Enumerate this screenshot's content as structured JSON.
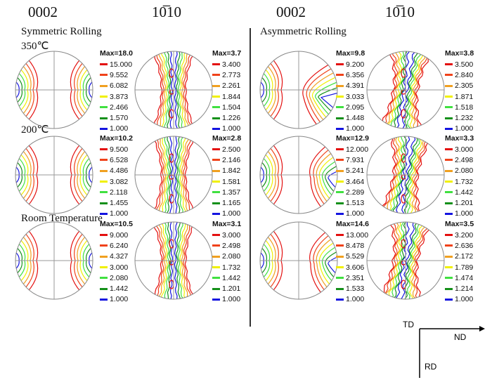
{
  "headers": {
    "pf_basal": "0002",
    "pf_prism": "10̅10",
    "pf_prism_plain": "1010"
  },
  "groups": {
    "symmetric": "Symmetric Rolling",
    "asymmetric": "Asymmetric Rolling"
  },
  "rows": [
    "350℃",
    "200℃",
    "Room Temperature"
  ],
  "level_colors": [
    "#e31010",
    "#f0421a",
    "#f0a020",
    "#f0f000",
    "#40e040",
    "#15901a",
    "#1414e0"
  ],
  "legends": [
    {
      "group": "symmetric",
      "row": 0,
      "pole": "0002",
      "max": "Max=18.0",
      "levels": [
        "15.000",
        "9.552",
        "6.082",
        "3.873",
        "2.466",
        "1.570",
        "1.000"
      ]
    },
    {
      "group": "symmetric",
      "row": 0,
      "pole": "10-10",
      "max": "Max=3.7",
      "levels": [
        "3.400",
        "2.773",
        "2.261",
        "1.844",
        "1.504",
        "1.226",
        "1.000"
      ]
    },
    {
      "group": "asymmetric",
      "row": 0,
      "pole": "0002",
      "max": "Max=9.8",
      "levels": [
        "9.200",
        "6.356",
        "4.391",
        "3.033",
        "2.095",
        "1.448",
        "1.000"
      ]
    },
    {
      "group": "asymmetric",
      "row": 0,
      "pole": "10-10",
      "max": "Max=3.8",
      "levels": [
        "3.500",
        "2.840",
        "2.305",
        "1.871",
        "1.518",
        "1.232",
        "1.000"
      ]
    },
    {
      "group": "symmetric",
      "row": 1,
      "pole": "0002",
      "max": "Max=10.2",
      "levels": [
        "9.500",
        "6.528",
        "4.486",
        "3.082",
        "2.118",
        "1.455",
        "1.000"
      ]
    },
    {
      "group": "symmetric",
      "row": 1,
      "pole": "10-10",
      "max": "Max=2.8",
      "levels": [
        "2.500",
        "2.146",
        "1.842",
        "1.581",
        "1.357",
        "1.165",
        "1.000"
      ]
    },
    {
      "group": "asymmetric",
      "row": 1,
      "pole": "0002",
      "max": "Max=12.9",
      "levels": [
        "12.000",
        "7.931",
        "5.241",
        "3.464",
        "2.289",
        "1.513",
        "1.000"
      ]
    },
    {
      "group": "asymmetric",
      "row": 1,
      "pole": "10-10",
      "max": "Max=3.3",
      "levels": [
        "3.000",
        "2.498",
        "2.080",
        "1.732",
        "1.442",
        "1.201",
        "1.000"
      ]
    },
    {
      "group": "symmetric",
      "row": 2,
      "pole": "0002",
      "max": "Max=10.5",
      "levels": [
        "9.000",
        "6.240",
        "4.327",
        "3.000",
        "2.080",
        "1.442",
        "1.000"
      ]
    },
    {
      "group": "symmetric",
      "row": 2,
      "pole": "10-10",
      "max": "Max=3.1",
      "levels": [
        "3.000",
        "2.498",
        "2.080",
        "1.732",
        "1.442",
        "1.201",
        "1.000"
      ]
    },
    {
      "group": "asymmetric",
      "row": 2,
      "pole": "0002",
      "max": "Max=14.6",
      "levels": [
        "13.000",
        "8.478",
        "5.529",
        "3.606",
        "2.351",
        "1.533",
        "1.000"
      ]
    },
    {
      "group": "asymmetric",
      "row": 2,
      "pole": "10-10",
      "max": "Max=3.5",
      "levels": [
        "3.200",
        "2.636",
        "2.172",
        "1.789",
        "1.474",
        "1.214",
        "1.000"
      ]
    }
  ],
  "axes": {
    "td": "TD",
    "nd": "ND",
    "rd": "RD"
  }
}
